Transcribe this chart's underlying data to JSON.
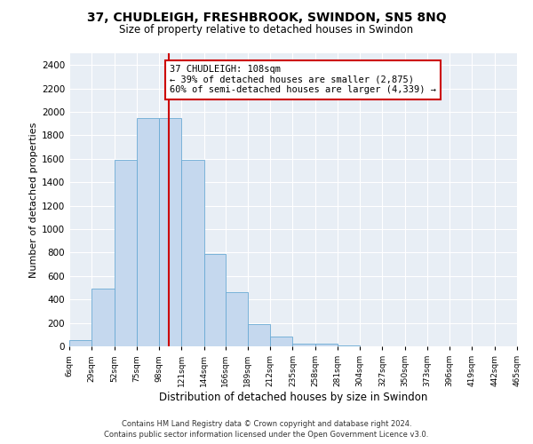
{
  "title": "37, CHUDLEIGH, FRESHBROOK, SWINDON, SN5 8NQ",
  "subtitle": "Size of property relative to detached houses in Swindon",
  "xlabel": "Distribution of detached houses by size in Swindon",
  "ylabel": "Number of detached properties",
  "footer_line1": "Contains HM Land Registry data © Crown copyright and database right 2024.",
  "footer_line2": "Contains public sector information licensed under the Open Government Licence v3.0.",
  "annotation_line1": "37 CHUDLEIGH: 108sqm",
  "annotation_line2": "← 39% of detached houses are smaller (2,875)",
  "annotation_line3": "60% of semi-detached houses are larger (4,339) →",
  "property_size": 108,
  "bin_edges": [
    6,
    29,
    52,
    75,
    98,
    121,
    144,
    166,
    189,
    212,
    235,
    258,
    281,
    304,
    327,
    350,
    373,
    396,
    419,
    442,
    465
  ],
  "bar_values": [
    50,
    490,
    1590,
    1950,
    1950,
    1590,
    790,
    460,
    190,
    80,
    25,
    20,
    5,
    0,
    0,
    0,
    0,
    0,
    0,
    0
  ],
  "bar_color": "#c5d8ee",
  "bar_edge_color": "#6aaad4",
  "vline_color": "#cc0000",
  "background_color": "#e8eef5",
  "ylim": [
    0,
    2500
  ],
  "yticks": [
    0,
    200,
    400,
    600,
    800,
    1000,
    1200,
    1400,
    1600,
    1800,
    2000,
    2200,
    2400
  ],
  "title_fontsize": 10,
  "subtitle_fontsize": 8.5
}
